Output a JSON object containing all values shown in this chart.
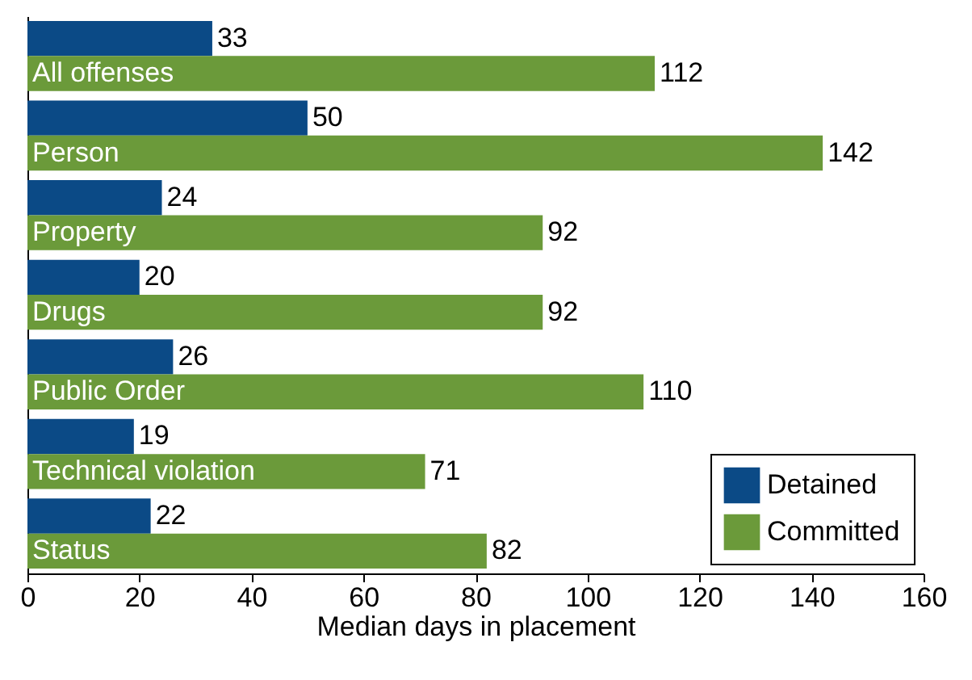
{
  "chart_data": {
    "type": "bar",
    "orientation": "horizontal",
    "xlabel": "Median days in placement",
    "categories": [
      "All offenses",
      "Person",
      "Property",
      "Drugs",
      "Public Order",
      "Technical violation",
      "Status"
    ],
    "series": [
      {
        "name": "Detained",
        "color": "#0b4a86",
        "values": [
          33,
          50,
          24,
          20,
          26,
          19,
          22
        ]
      },
      {
        "name": "Committed",
        "color": "#6b9a3a",
        "values": [
          112,
          142,
          92,
          92,
          110,
          71,
          82
        ]
      }
    ],
    "xlim": [
      0,
      160
    ],
    "xticks": [
      0,
      20,
      40,
      60,
      80,
      100,
      120,
      140,
      160
    ],
    "data_labels": true,
    "legend": "bottom right",
    "grid": false
  }
}
